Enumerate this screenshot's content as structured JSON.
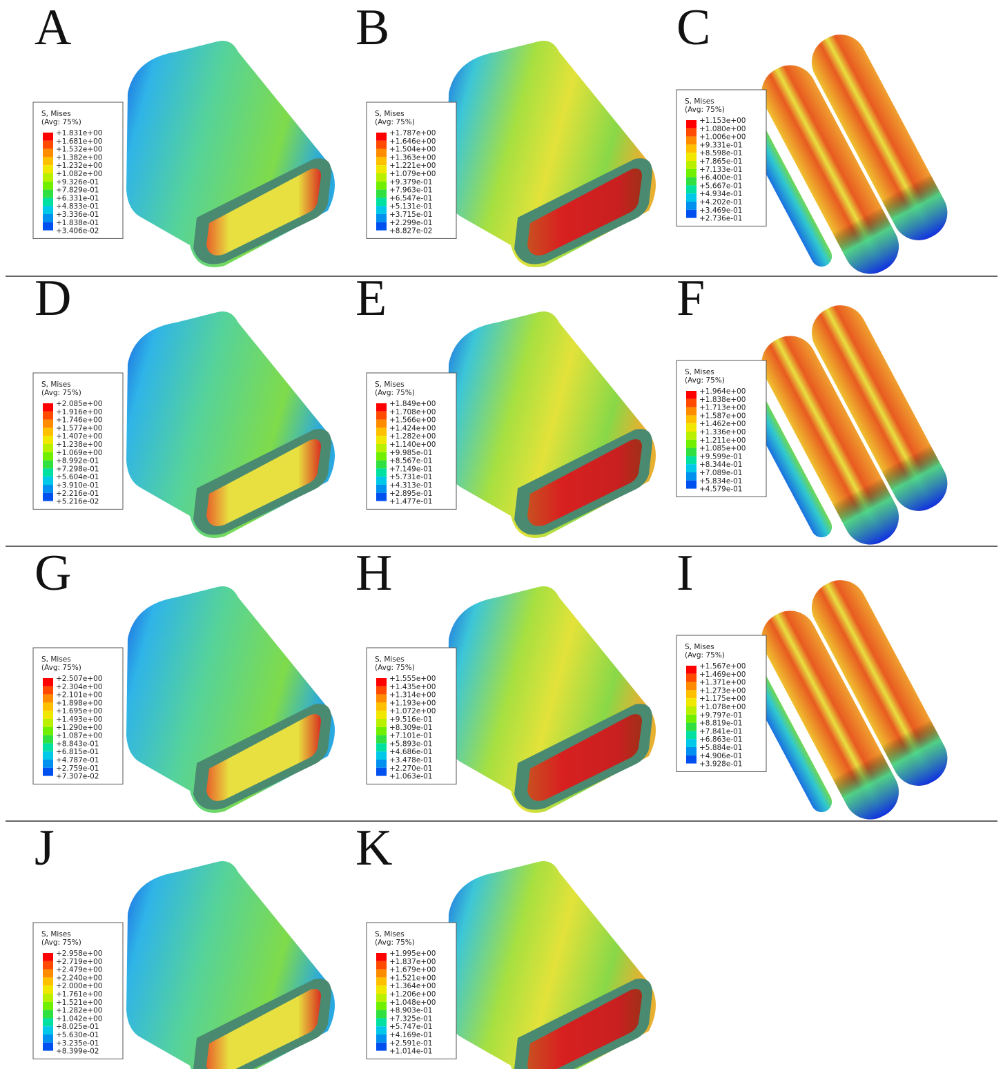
{
  "panels": [
    {
      "label": "A",
      "legend_title": "S, Mises",
      "legend_subtitle": "(Avg: 75%)",
      "values": [
        "+1.831e+00",
        "+1.681e+00",
        "+1.532e+00",
        "+1.382e+00",
        "+1.232e+00",
        "+1.082e+00",
        "+9.326e-01",
        "+7.829e-01",
        "+6.331e-01",
        "+4.833e-01",
        "+3.336e-01",
        "+1.838e-01",
        "+3.406e-02"
      ]
    },
    {
      "label": "B",
      "legend_title": "S, Mises",
      "legend_subtitle": "(Avg: 75%)",
      "values": [
        "+1.787e+00",
        "+1.646e+00",
        "+1.504e+00",
        "+1.363e+00",
        "+1.221e+00",
        "+1.079e+00",
        "+9.379e-01",
        "+7.963e-01",
        "+6.547e-01",
        "+5.131e-01",
        "+3.715e-01",
        "+2.299e-01",
        "+8.827e-02"
      ]
    },
    {
      "label": "C",
      "legend_title": "S, Mises",
      "legend_subtitle": "(Avg: 75%)",
      "values": [
        "+1.153e+00",
        "+1.080e+00",
        "+1.006e+00",
        "+9.331e-01",
        "+8.598e-01",
        "+7.865e-01",
        "+7.133e-01",
        "+6.400e-01",
        "+5.667e-01",
        "+4.934e-01",
        "+4.202e-01",
        "+3.469e-01",
        "+2.736e-01"
      ]
    },
    {
      "label": "D",
      "legend_title": "S, Mises",
      "legend_subtitle": "(Avg: 75%)",
      "values": [
        "+2.085e+00",
        "+1.916e+00",
        "+1.746e+00",
        "+1.577e+00",
        "+1.407e+00",
        "+1.238e+00",
        "+1.069e+00",
        "+8.992e-01",
        "+7.298e-01",
        "+5.604e-01",
        "+3.910e-01",
        "+2.216e-01",
        "+5.216e-02"
      ]
    },
    {
      "label": "E",
      "legend_title": "S, Mises",
      "legend_subtitle": "(Avg: 75%)",
      "values": [
        "+1.849e+00",
        "+1.708e+00",
        "+1.566e+00",
        "+1.424e+00",
        "+1.282e+00",
        "+1.140e+00",
        "+9.985e-01",
        "+8.567e-01",
        "+7.149e-01",
        "+5.731e-01",
        "+4.313e-01",
        "+2.895e-01",
        "+1.477e-01"
      ]
    },
    {
      "label": "F",
      "legend_title": "S, Mises",
      "legend_subtitle": "(Avg: 75%)",
      "values": [
        "+1.964e+00",
        "+1.838e+00",
        "+1.713e+00",
        "+1.587e+00",
        "+1.462e+00",
        "+1.336e+00",
        "+1.211e+00",
        "+1.085e+00",
        "+9.599e-01",
        "+8.344e-01",
        "+7.089e-01",
        "+5.834e-01",
        "+4.579e-01"
      ]
    },
    {
      "label": "G",
      "legend_title": "S, Mises",
      "legend_subtitle": "(Avg: 75%)",
      "values": [
        "+2.507e+00",
        "+2.304e+00",
        "+2.101e+00",
        "+1.898e+00",
        "+1.695e+00",
        "+1.493e+00",
        "+1.290e+00",
        "+1.087e+00",
        "+8.843e-01",
        "+6.815e-01",
        "+4.787e-01",
        "+2.759e-01",
        "+7.307e-02"
      ]
    },
    {
      "label": "H",
      "legend_title": "S, Mises",
      "legend_subtitle": "(Avg: 75%)",
      "values": [
        "+1.555e+00",
        "+1.435e+00",
        "+1.314e+00",
        "+1.193e+00",
        "+1.072e+00",
        "+9.516e-01",
        "+8.309e-01",
        "+7.101e-01",
        "+5.893e-01",
        "+4.686e-01",
        "+3.478e-01",
        "+2.270e-01",
        "+1.063e-01"
      ]
    },
    {
      "label": "I",
      "legend_title": "S, Mises",
      "legend_subtitle": "(Avg: 75%)",
      "values": [
        "+1.567e+00",
        "+1.469e+00",
        "+1.371e+00",
        "+1.273e+00",
        "+1.175e+00",
        "+1.078e+00",
        "+9.797e-01",
        "+8.819e-01",
        "+7.841e-01",
        "+6.863e-01",
        "+5.884e-01",
        "+4.906e-01",
        "+3.928e-01"
      ]
    },
    {
      "label": "J",
      "legend_title": "S, Mises",
      "legend_subtitle": "(Avg: 75%)",
      "values": [
        "+2.958e+00",
        "+2.719e+00",
        "+2.479e+00",
        "+2.240e+00",
        "+2.000e+00",
        "+1.761e+00",
        "+1.521e+00",
        "+1.282e+00",
        "+1.042e+00",
        "+8.025e-01",
        "+5.630e-01",
        "+3.235e-01",
        "+8.399e-02"
      ]
    },
    {
      "label": "K",
      "legend_title": "S, Mises",
      "legend_subtitle": "(Avg: 75%)",
      "values": [
        "+1.995e+00",
        "+1.837e+00",
        "+1.679e+00",
        "+1.521e+00",
        "+1.364e+00",
        "+1.206e+00",
        "+1.048e+00",
        "+8.903e-01",
        "+7.325e-01",
        "+5.747e-01",
        "+4.169e-01",
        "+2.591e-01",
        "+1.014e-01"
      ]
    }
  ]
}
